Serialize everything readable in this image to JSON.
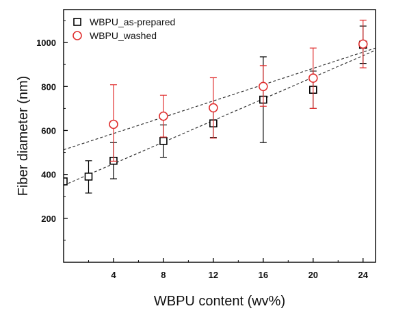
{
  "chart_data": {
    "type": "scatter",
    "xlabel": "WBPU content (wv%)",
    "ylabel": "Fiber diameter (nm)",
    "xlim": [
      0,
      25
    ],
    "ylim": [
      0,
      1150
    ],
    "xticks": [
      4,
      8,
      12,
      16,
      20,
      24
    ],
    "yticks": [
      200,
      400,
      600,
      800,
      1000
    ],
    "legend_position": "top-left",
    "series": [
      {
        "name": "WBPU_as-prepared",
        "marker": "square",
        "color": "#000000",
        "points": [
          {
            "x": 0,
            "y": 368
          },
          {
            "x": 2,
            "y": 390,
            "err_low": 315,
            "err_high": 462
          },
          {
            "x": 4,
            "y": 462,
            "err_low": 380,
            "err_high": 545
          },
          {
            "x": 8,
            "y": 552,
            "err_low": 478,
            "err_high": 625
          },
          {
            "x": 12,
            "y": 632,
            "err_low": 568,
            "err_high": 700
          },
          {
            "x": 16,
            "y": 740,
            "err_low": 545,
            "err_high": 935
          },
          {
            "x": 20,
            "y": 785,
            "err_low": 700,
            "err_high": 870
          },
          {
            "x": 24,
            "y": 990,
            "err_low": 905,
            "err_high": 1075
          }
        ],
        "trendline": {
          "x": [
            0,
            25
          ],
          "y": [
            350,
            965
          ]
        }
      },
      {
        "name": "WBPU_washed",
        "marker": "circle",
        "color": "#e03030",
        "points": [
          {
            "x": 4,
            "y": 628,
            "err_low": 460,
            "err_high": 808
          },
          {
            "x": 8,
            "y": 665,
            "err_low": 570,
            "err_high": 760
          },
          {
            "x": 12,
            "y": 703,
            "err_low": 565,
            "err_high": 840
          },
          {
            "x": 16,
            "y": 800,
            "err_low": 710,
            "err_high": 895
          },
          {
            "x": 20,
            "y": 838,
            "err_low": 700,
            "err_high": 975
          },
          {
            "x": 24,
            "y": 993,
            "err_low": 885,
            "err_high": 1102
          }
        ],
        "trendline": {
          "x": [
            0,
            25
          ],
          "y": [
            512,
            975
          ]
        }
      }
    ]
  }
}
